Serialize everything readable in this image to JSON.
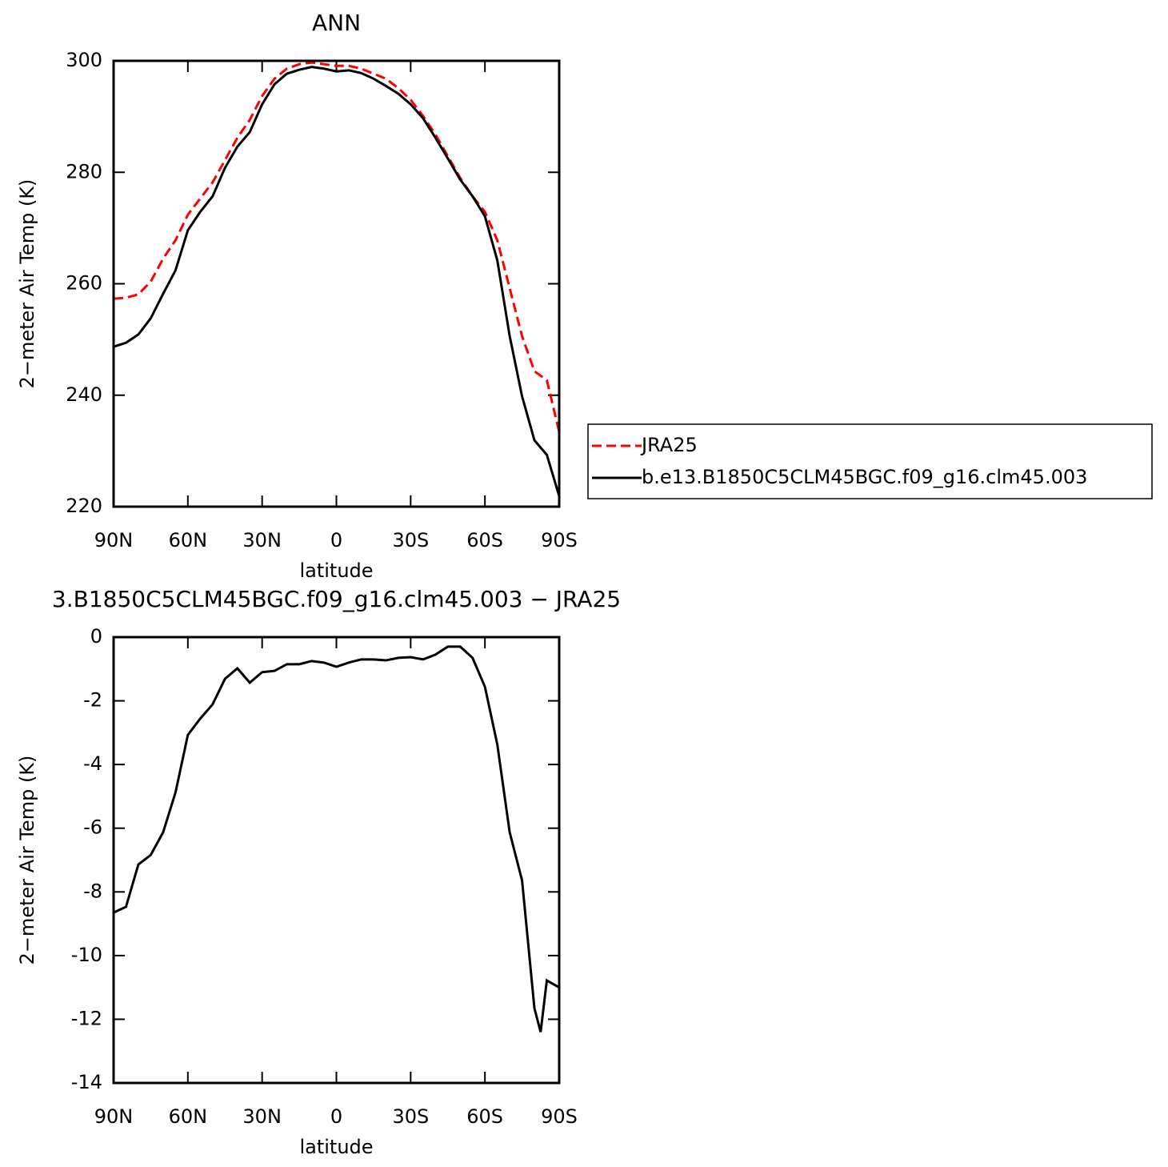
{
  "chart_data": [
    {
      "type": "line",
      "title": "ANN",
      "y_label": "2−meter Air Temp (K)",
      "x_label": "latitude",
      "x": [
        90,
        85,
        80,
        75,
        70,
        65,
        60,
        55,
        50,
        45,
        40,
        35,
        30,
        25,
        20,
        15,
        10,
        5,
        0,
        -5,
        -10,
        -15,
        -20,
        -25,
        -30,
        -35,
        -40,
        -45,
        -50,
        -55,
        -60,
        -65,
        -70,
        -75,
        -80,
        -85,
        -90
      ],
      "series": [
        {
          "name": "JRA25",
          "color": "#ff0000",
          "dashed": true,
          "values": [
            257.3,
            257.5,
            258.1,
            260.4,
            264.5,
            267.8,
            272.4,
            275.3,
            278.2,
            282.2,
            286.2,
            289.4,
            293.7,
            296.8,
            298.6,
            299.4,
            299.7,
            299.4,
            299.1,
            299.1,
            298.6,
            297.7,
            296.8,
            295.1,
            293.0,
            290.1,
            286.8,
            282.9,
            279.0,
            275.7,
            272.9,
            267.8,
            259.2,
            250.6,
            244.3,
            242.7,
            233.4
          ]
        },
        {
          "name": "b.e13.B1850C5CLM45BGC.f09_g16.clm45.003",
          "color": "#000000",
          "dashed": false,
          "values": [
            248.7,
            249.4,
            250.9,
            253.8,
            258.2,
            262.4,
            269.6,
            272.9,
            275.7,
            280.8,
            284.6,
            287.2,
            292.2,
            295.8,
            297.7,
            298.4,
            298.9,
            298.6,
            298.1,
            298.3,
            297.8,
            296.8,
            295.5,
            294.1,
            292.2,
            289.7,
            286.2,
            282.5,
            278.7,
            275.7,
            272.1,
            264.2,
            250.6,
            239.8,
            231.9,
            229.3,
            221.9
          ]
        }
      ],
      "xlim": [
        90,
        -90
      ],
      "xticks": [
        {
          "value": 90,
          "label": "90N"
        },
        {
          "value": 60,
          "label": "60N"
        },
        {
          "value": 30,
          "label": "30N"
        },
        0,
        {
          "value": -30,
          "label": "30S"
        },
        {
          "value": -60,
          "label": "60S"
        },
        {
          "value": -90,
          "label": "90S"
        }
      ],
      "ylim": [
        220,
        300
      ],
      "yticks": [
        220,
        240,
        260,
        280,
        300
      ],
      "legend": "right"
    },
    {
      "type": "line",
      "title": "3.B1850C5CLM45BGC.f09_g16.clm45.003 − JRA25",
      "y_label": "2−meter Air Temp (K)",
      "x_label": "latitude",
      "x": [
        90,
        85,
        80,
        75,
        70,
        65,
        60,
        55,
        50,
        45,
        40,
        35,
        30,
        25,
        20,
        15,
        10,
        5,
        0,
        -5,
        -10,
        -15,
        -20,
        -25,
        -30,
        -35,
        -40,
        -45,
        -50,
        -55,
        -60,
        -65,
        -70,
        -75,
        -80,
        -82.5,
        -85,
        -90
      ],
      "series": [
        {
          "color": "#000000",
          "dashed": false,
          "values": [
            -8.65,
            -8.47,
            -7.14,
            -6.84,
            -6.13,
            -4.88,
            -3.07,
            -2.56,
            -2.11,
            -1.31,
            -0.98,
            -1.43,
            -1.1,
            -1.06,
            -0.85,
            -0.85,
            -0.75,
            -0.8,
            -0.93,
            -0.8,
            -0.7,
            -0.7,
            -0.73,
            -0.65,
            -0.63,
            -0.7,
            -0.55,
            -0.3,
            -0.3,
            -0.65,
            -1.56,
            -3.37,
            -6.13,
            -7.64,
            -11.66,
            -12.4,
            -10.78,
            -11.0
          ]
        }
      ],
      "xlim": [
        90,
        -90
      ],
      "xticks": [
        {
          "value": 90,
          "label": "90N"
        },
        {
          "value": 60,
          "label": "60N"
        },
        {
          "value": 30,
          "label": "30N"
        },
        0,
        {
          "value": -30,
          "label": "30S"
        },
        {
          "value": -60,
          "label": "60S"
        },
        {
          "value": -90,
          "label": "90S"
        }
      ],
      "ylim": [
        -14,
        0
      ],
      "yticks": [
        -14,
        -12,
        -10,
        -8,
        -6,
        -4,
        -2,
        0
      ]
    }
  ]
}
